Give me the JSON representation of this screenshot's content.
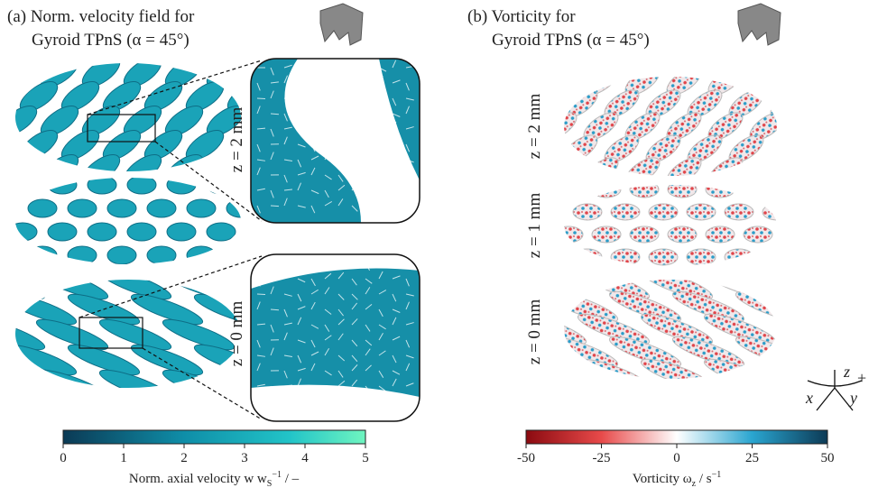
{
  "panel_a": {
    "title_line1": "(a) Norm. velocity field for",
    "title_line2": "Gyroid TPnS (α = 45°)",
    "inset_labels": [
      "z = 2 mm",
      "z = 0 mm"
    ],
    "colorbar": {
      "ticks": [
        0,
        1,
        2,
        3,
        4,
        5
      ],
      "label": {
        "text": "Norm. axial velocity w w",
        "sub": "S",
        "sup": "−1",
        "suffix": " / –"
      }
    }
  },
  "panel_b": {
    "title_line1": "(b) Vorticity for",
    "title_line2": "Gyroid TPnS (α = 45°)",
    "row_labels": [
      "z = 2 mm",
      "z = 1 mm",
      "z = 0 mm"
    ],
    "colorbar": {
      "ticks": [
        -50,
        -25,
        0,
        25,
        50
      ],
      "label": {
        "text": "Vorticity ω",
        "sub": "z",
        "mid": " / s",
        "sup": "−1"
      }
    }
  },
  "axes_triad": {
    "x": "x",
    "y": "y",
    "z": "z",
    "sign": "+"
  }
}
